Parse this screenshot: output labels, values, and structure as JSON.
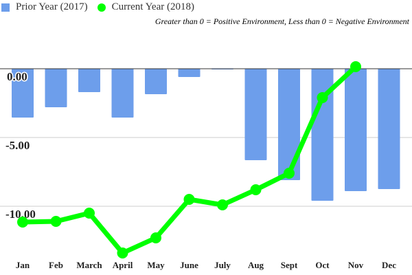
{
  "chart_data": {
    "type": "bar+line",
    "subtitle": "Greater than 0 = Positive Environment, Less than 0 = Negative Environment",
    "categories": [
      "Jan",
      "Feb",
      "March",
      "April",
      "May",
      "June",
      "July",
      "Aug",
      "Sept",
      "Oct",
      "Nov",
      "Dec"
    ],
    "series": [
      {
        "name": "Prior Year (2017)",
        "type": "bar",
        "color": "#6d9eeb",
        "values": [
          -3.55,
          -2.8,
          -1.7,
          -3.55,
          -1.85,
          -0.6,
          -0.05,
          -6.65,
          -8.1,
          -9.6,
          -8.9,
          -8.75
        ]
      },
      {
        "name": "Current Year (2018)",
        "type": "line",
        "color": "#00ff00",
        "values": [
          -11.15,
          -11.1,
          -10.5,
          -13.4,
          -12.3,
          -9.5,
          -9.9,
          -8.8,
          -7.6,
          -2.1,
          0.15,
          null
        ]
      }
    ],
    "yticks": [
      "0.00",
      "-5.00",
      "-10.00"
    ],
    "ytick_values": [
      0,
      -5,
      -10
    ],
    "ylim": [
      -14,
      3
    ],
    "grid": true,
    "legend": "top-left"
  }
}
